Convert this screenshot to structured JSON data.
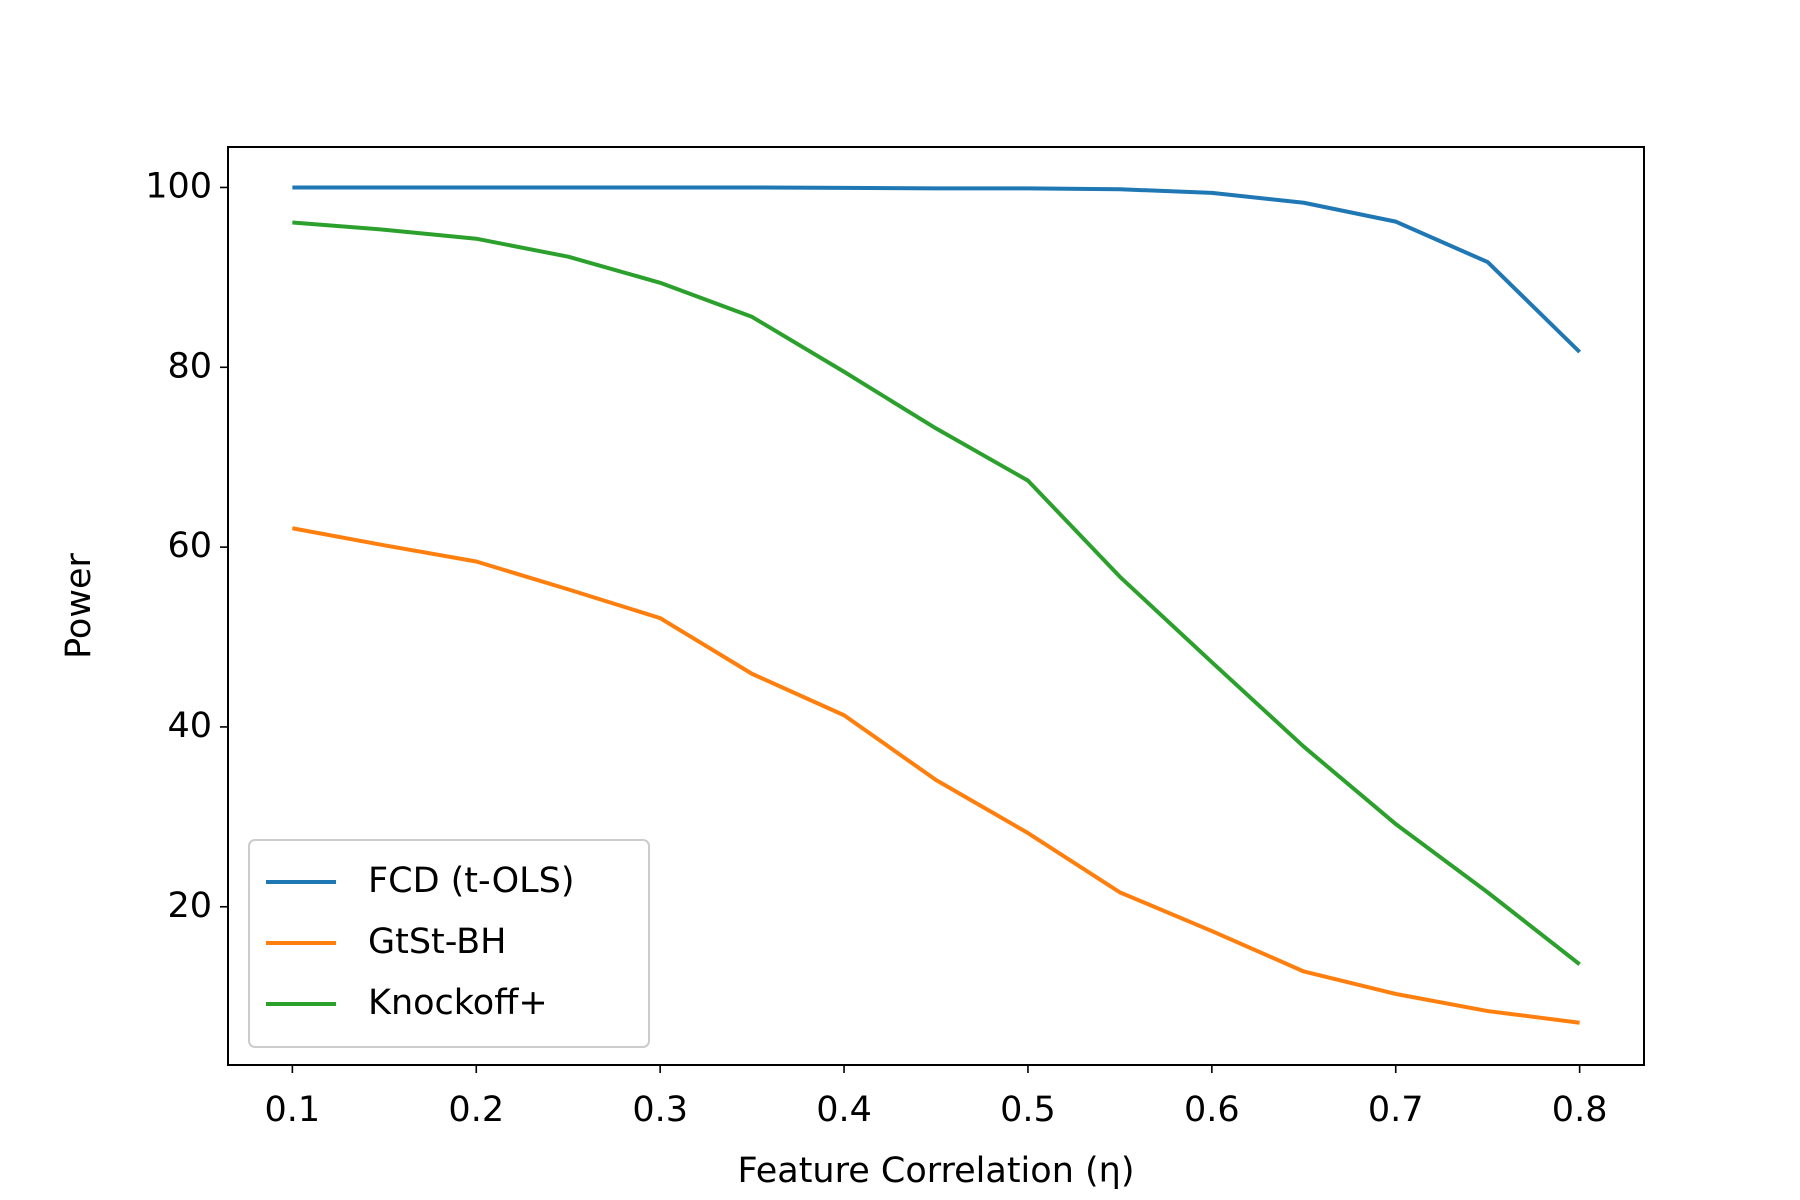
{
  "chart_data": {
    "type": "line",
    "xlabel": "Feature Correlation (η)",
    "ylabel": "Power",
    "x": [
      0.1,
      0.15,
      0.2,
      0.25,
      0.3,
      0.35,
      0.4,
      0.45,
      0.5,
      0.55,
      0.6,
      0.65,
      0.7,
      0.75,
      0.8
    ],
    "series": [
      {
        "name": "FCD (t-OLS)",
        "color": "#1f77b4",
        "values": [
          100,
          100,
          100,
          100,
          100,
          100,
          99.95,
          99.9,
          99.9,
          99.8,
          99.4,
          98.3,
          96.2,
          91.7,
          81.7
        ]
      },
      {
        "name": "GtSt-BH",
        "color": "#ff7f0e",
        "values": [
          62.1,
          60.2,
          58.4,
          55.3,
          52.1,
          45.9,
          41.3,
          34.1,
          28.2,
          21.6,
          17.3,
          12.8,
          10.3,
          8.4,
          7.1
        ]
      },
      {
        "name": "Knockoff+",
        "color": "#2ca02c",
        "values": [
          96.1,
          95.3,
          94.3,
          92.3,
          89.4,
          85.6,
          79.5,
          73.2,
          67.4,
          56.7,
          47.2,
          37.8,
          29.2,
          21.6,
          13.6
        ]
      }
    ],
    "xlim": [
      0.065,
      0.835
    ],
    "xticks": [
      0.1,
      0.2,
      0.3,
      0.4,
      0.5,
      0.6,
      0.7,
      0.8
    ],
    "ylim": [
      2.4,
      104.5
    ],
    "yticks": [
      20,
      40,
      60,
      80,
      100
    ],
    "grid": false,
    "legend": "lower left"
  }
}
